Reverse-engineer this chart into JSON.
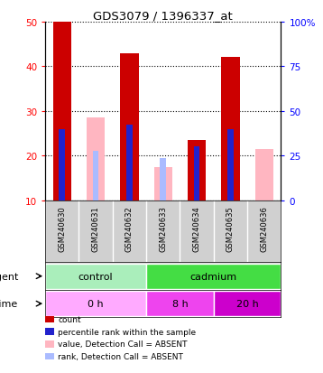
{
  "title": "GDS3079 / 1396337_at",
  "samples": [
    "GSM240630",
    "GSM240631",
    "GSM240632",
    "GSM240633",
    "GSM240634",
    "GSM240635",
    "GSM240636"
  ],
  "red_bars": [
    50,
    0,
    43,
    0,
    23.5,
    42,
    0
  ],
  "blue_bars": [
    26,
    0,
    27,
    0,
    22,
    26,
    0
  ],
  "pink_bars": [
    0,
    28.5,
    0,
    17.5,
    0,
    0,
    21.5
  ],
  "lightblue_bars": [
    0,
    21,
    0,
    19.5,
    0,
    0,
    0
  ],
  "ylim_left": [
    10,
    50
  ],
  "ylim_right": [
    0,
    100
  ],
  "yticks_left": [
    10,
    20,
    30,
    40,
    50
  ],
  "yticks_right": [
    0,
    25,
    50,
    75,
    100
  ],
  "ytick_labels_right": [
    "0",
    "25",
    "50",
    "75",
    "100%"
  ],
  "red_color": "#CC0000",
  "blue_color": "#2222CC",
  "pink_color": "#FFB6C1",
  "lightblue_color": "#AABBFF",
  "control_color": "#AAEEBB",
  "cadmium_color": "#44DD44",
  "time0_color": "#FFAAFF",
  "time8_color": "#EE44EE",
  "time20_color": "#CC00CC",
  "label_bg": "#D0D0D0",
  "legend_items": [
    {
      "color": "#CC0000",
      "label": "count"
    },
    {
      "color": "#2222CC",
      "label": "percentile rank within the sample"
    },
    {
      "color": "#FFB6C1",
      "label": "value, Detection Call = ABSENT"
    },
    {
      "color": "#AABBFF",
      "label": "rank, Detection Call = ABSENT"
    }
  ]
}
